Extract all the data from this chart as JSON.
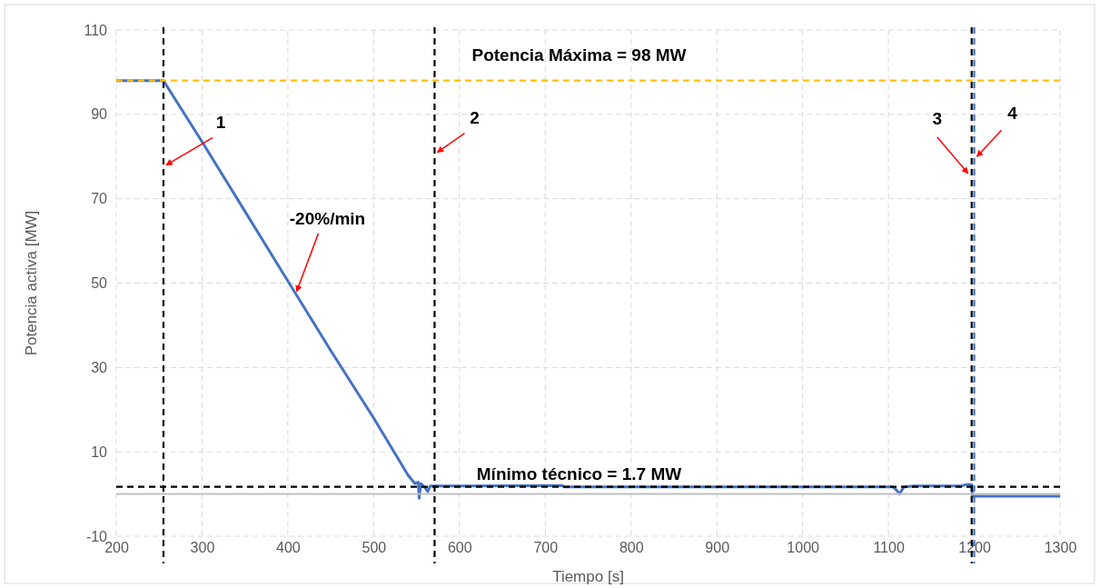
{
  "chart_data": {
    "type": "line",
    "xlabel": "Tiempo [s]",
    "ylabel": "Potencia activa [MW]",
    "xlim": [
      200,
      1300
    ],
    "xticks": [
      200,
      300,
      400,
      500,
      600,
      700,
      800,
      900,
      1000,
      1100,
      1200,
      1300
    ],
    "ylim": [
      -10,
      110
    ],
    "yticks": [
      -10,
      10,
      30,
      50,
      70,
      90,
      110
    ],
    "grid": true,
    "marker": "none",
    "line_style": "solid",
    "series": [
      {
        "color": "#4472c4",
        "x": [
          200,
          255,
          300,
          350,
          400,
          450,
          500,
          540,
          548,
          552,
          553,
          555,
          560,
          563,
          566,
          720,
          722,
          1105,
          1110,
          1113,
          1118,
          1130,
          1185,
          1190,
          1197,
          1198,
          1300
        ],
        "values": [
          98,
          98,
          83.5,
          67,
          50.5,
          34,
          18,
          4.5,
          2.5,
          2.8,
          -1,
          2.5,
          1.5,
          0.6,
          1.9,
          2,
          1.7,
          1.7,
          0.8,
          0,
          1.7,
          1.9,
          1.9,
          2.2,
          2.2,
          -0.5,
          -0.5
        ]
      }
    ],
    "ref_lines": [
      {
        "axis": "y",
        "value": 98,
        "label": "Potencia Máxima = 98 MW",
        "color": "#ffc000",
        "line_style": "dashed"
      },
      {
        "axis": "y",
        "value": 1.7,
        "label": "Mínimo técnico = 1.7 MW",
        "color": "#000000",
        "line_style": "dashed"
      },
      {
        "axis": "x",
        "value": 255,
        "color": "#000000",
        "line_style": "dashed"
      },
      {
        "axis": "x",
        "value": 571,
        "color": "#000000",
        "line_style": "dashed"
      },
      {
        "axis": "x",
        "value": 1197,
        "color": "#000000",
        "line_style": "dashed"
      },
      {
        "axis": "x",
        "value": 1200,
        "color": "#4472c4",
        "line_style": "dashed"
      }
    ],
    "annotations": [
      {
        "text": "1",
        "x": 255,
        "y": 78
      },
      {
        "text": "-20%/min",
        "x": 407,
        "y": 48
      },
      {
        "text": "2",
        "x": 571,
        "y": 81
      },
      {
        "text": "3",
        "x": 1197,
        "y": 76
      },
      {
        "text": "4",
        "x": 1200,
        "y": 80
      }
    ]
  }
}
